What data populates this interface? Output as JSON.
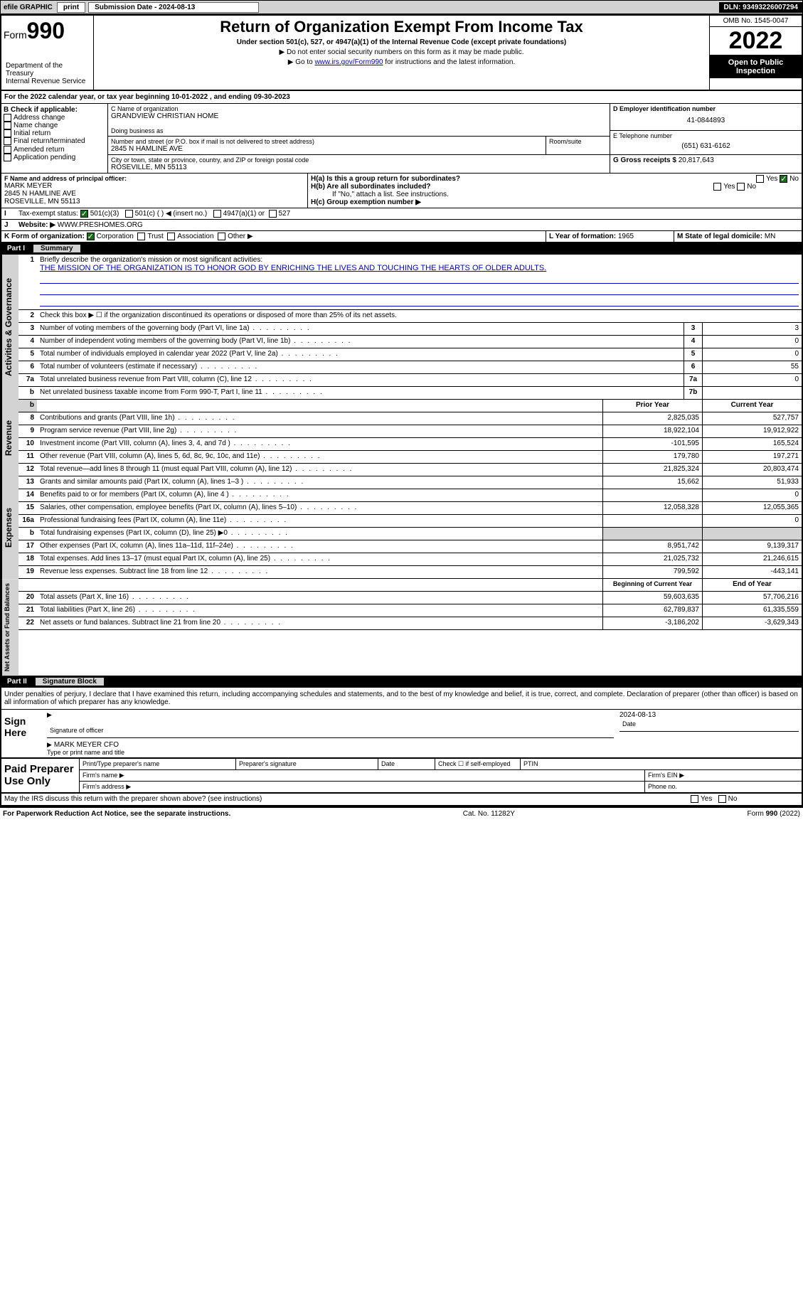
{
  "toolbar": {
    "efile": "efile GRAPHIC",
    "print": "print",
    "sub_label": "Submission Date - 2024-08-13",
    "dln": "DLN: 93493226007294"
  },
  "header": {
    "form_prefix": "Form",
    "form_num": "990",
    "title": "Return of Organization Exempt From Income Tax",
    "subtitle": "Under section 501(c), 527, or 4947(a)(1) of the Internal Revenue Code (except private foundations)",
    "note1": "▶ Do not enter social security numbers on this form as it may be made public.",
    "note2_pre": "▶ Go to ",
    "note2_link": "www.irs.gov/Form990",
    "note2_post": " for instructions and the latest information.",
    "dept": "Department of the Treasury\nInternal Revenue Service",
    "omb": "OMB No. 1545-0047",
    "year": "2022",
    "inspection": "Open to Public Inspection"
  },
  "period": "For the 2022 calendar year, or tax year beginning 10-01-2022   , and ending 09-30-2023",
  "blockB": {
    "label": "B Check if applicable:",
    "opts": [
      "Address change",
      "Name change",
      "Initial return",
      "Final return/terminated",
      "Amended return",
      "Application pending"
    ]
  },
  "blockC": {
    "name_label": "C Name of organization",
    "name": "GRANDVIEW CHRISTIAN HOME",
    "dba_label": "Doing business as",
    "addr_label": "Number and street (or P.O. box if mail is not delivered to street address)",
    "room_label": "Room/suite",
    "addr": "2845 N HAMLINE AVE",
    "city_label": "City or town, state or province, country, and ZIP or foreign postal code",
    "city": "ROSEVILLE, MN  55113"
  },
  "blockD": {
    "label": "D Employer identification number",
    "value": "41-0844893"
  },
  "blockE": {
    "label": "E Telephone number",
    "value": "(651) 631-6162"
  },
  "blockG": {
    "label": "G Gross receipts $",
    "value": "20,817,643"
  },
  "blockF": {
    "label": "F Name and address of principal officer:",
    "name": "MARK MEYER",
    "addr1": "2845 N HAMLINE AVE",
    "addr2": "ROSEVILLE, MN  55113"
  },
  "blockH": {
    "a": "H(a)  Is this a group return for subordinates?",
    "b": "H(b)  Are all subordinates included?",
    "bnote": "If \"No,\" attach a list. See instructions.",
    "c": "H(c)  Group exemption number ▶",
    "yes": "Yes",
    "no": "No"
  },
  "taxexempt": {
    "label": "Tax-exempt status:",
    "c3": "501(c)(3)",
    "c": "501(c) (  ) ◀ (insert no.)",
    "a1": "4947(a)(1) or",
    "s527": "527"
  },
  "website": {
    "label": "Website: ▶",
    "value": "WWW.PRESHOMES.ORG"
  },
  "blockK": {
    "label": "K Form of organization:",
    "corp": "Corporation",
    "trust": "Trust",
    "assoc": "Association",
    "other": "Other ▶"
  },
  "blockL": {
    "label": "L Year of formation:",
    "value": "1965"
  },
  "blockM": {
    "label": "M State of legal domicile:",
    "value": "MN"
  },
  "part1": {
    "num": "Part I",
    "title": "Summary"
  },
  "summary": {
    "q1": "Briefly describe the organization's mission or most significant activities:",
    "mission": "THE MISSION OF THE ORGANIZATION IS TO HONOR GOD BY ENRICHING THE LIVES AND TOUCHING THE HEARTS OF OLDER ADULTS.",
    "q2": "Check this box ▶ ☐  if the organization discontinued its operations or disposed of more than 25% of its net assets.",
    "lines": [
      {
        "n": "3",
        "t": "Number of voting members of the governing body (Part VI, line 1a)",
        "box": "3",
        "v": "3"
      },
      {
        "n": "4",
        "t": "Number of independent voting members of the governing body (Part VI, line 1b)",
        "box": "4",
        "v": "0"
      },
      {
        "n": "5",
        "t": "Total number of individuals employed in calendar year 2022 (Part V, line 2a)",
        "box": "5",
        "v": "0"
      },
      {
        "n": "6",
        "t": "Total number of volunteers (estimate if necessary)",
        "box": "6",
        "v": "55"
      },
      {
        "n": "7a",
        "t": "Total unrelated business revenue from Part VIII, column (C), line 12",
        "box": "7a",
        "v": "0"
      },
      {
        "n": "b",
        "t": "Net unrelated business taxable income from Form 990-T, Part I, line 11",
        "box": "7b",
        "v": ""
      }
    ],
    "col_prior": "Prior Year",
    "col_current": "Current Year",
    "rev": [
      {
        "n": "8",
        "t": "Contributions and grants (Part VIII, line 1h)",
        "p": "2,825,035",
        "c": "527,757"
      },
      {
        "n": "9",
        "t": "Program service revenue (Part VIII, line 2g)",
        "p": "18,922,104",
        "c": "19,912,922"
      },
      {
        "n": "10",
        "t": "Investment income (Part VIII, column (A), lines 3, 4, and 7d )",
        "p": "-101,595",
        "c": "165,524"
      },
      {
        "n": "11",
        "t": "Other revenue (Part VIII, column (A), lines 5, 6d, 8c, 9c, 10c, and 11e)",
        "p": "179,780",
        "c": "197,271"
      },
      {
        "n": "12",
        "t": "Total revenue—add lines 8 through 11 (must equal Part VIII, column (A), line 12)",
        "p": "21,825,324",
        "c": "20,803,474"
      }
    ],
    "exp": [
      {
        "n": "13",
        "t": "Grants and similar amounts paid (Part IX, column (A), lines 1–3 )",
        "p": "15,662",
        "c": "51,933"
      },
      {
        "n": "14",
        "t": "Benefits paid to or for members (Part IX, column (A), line 4 )",
        "p": "",
        "c": "0"
      },
      {
        "n": "15",
        "t": "Salaries, other compensation, employee benefits (Part IX, column (A), lines 5–10)",
        "p": "12,058,328",
        "c": "12,055,365"
      },
      {
        "n": "16a",
        "t": "Professional fundraising fees (Part IX, column (A), line 11e)",
        "p": "",
        "c": "0"
      },
      {
        "n": "b",
        "t": "Total fundraising expenses (Part IX, column (D), line 25) ▶0",
        "p": "grey",
        "c": "grey"
      },
      {
        "n": "17",
        "t": "Other expenses (Part IX, column (A), lines 11a–11d, 11f–24e)",
        "p": "8,951,742",
        "c": "9,139,317"
      },
      {
        "n": "18",
        "t": "Total expenses. Add lines 13–17 (must equal Part IX, column (A), line 25)",
        "p": "21,025,732",
        "c": "21,246,615"
      },
      {
        "n": "19",
        "t": "Revenue less expenses. Subtract line 18 from line 12",
        "p": "799,592",
        "c": "-443,141"
      }
    ],
    "col_begin": "Beginning of Current Year",
    "col_end": "End of Year",
    "net": [
      {
        "n": "20",
        "t": "Total assets (Part X, line 16)",
        "p": "59,603,635",
        "c": "57,706,216"
      },
      {
        "n": "21",
        "t": "Total liabilities (Part X, line 26)",
        "p": "62,789,837",
        "c": "61,335,559"
      },
      {
        "n": "22",
        "t": "Net assets or fund balances. Subtract line 21 from line 20",
        "p": "-3,186,202",
        "c": "-3,629,343"
      }
    ]
  },
  "side": {
    "gov": "Activities & Governance",
    "rev": "Revenue",
    "exp": "Expenses",
    "net": "Net Assets or Fund Balances"
  },
  "part2": {
    "num": "Part II",
    "title": "Signature Block"
  },
  "penalties": "Under penalties of perjury, I declare that I have examined this return, including accompanying schedules and statements, and to the best of my knowledge and belief, it is true, correct, and complete. Declaration of preparer (other than officer) is based on all information of which preparer has any knowledge.",
  "sign": {
    "here": "Sign Here",
    "sig_label": "Signature of officer",
    "date_label": "Date",
    "date": "2024-08-13",
    "name": "MARK MEYER CFO",
    "name_label": "Type or print name and title"
  },
  "prep": {
    "title": "Paid Preparer Use Only",
    "c1": "Print/Type preparer's name",
    "c2": "Preparer's signature",
    "c3": "Date",
    "c4": "Check ☐ if self-employed",
    "c5": "PTIN",
    "firm": "Firm's name  ▶",
    "ein": "Firm's EIN ▶",
    "addr": "Firm's address ▶",
    "phone": "Phone no."
  },
  "discuss": "May the IRS discuss this return with the preparer shown above? (see instructions)",
  "footer": {
    "left": "For Paperwork Reduction Act Notice, see the separate instructions.",
    "mid": "Cat. No. 11282Y",
    "right": "Form 990 (2022)"
  }
}
